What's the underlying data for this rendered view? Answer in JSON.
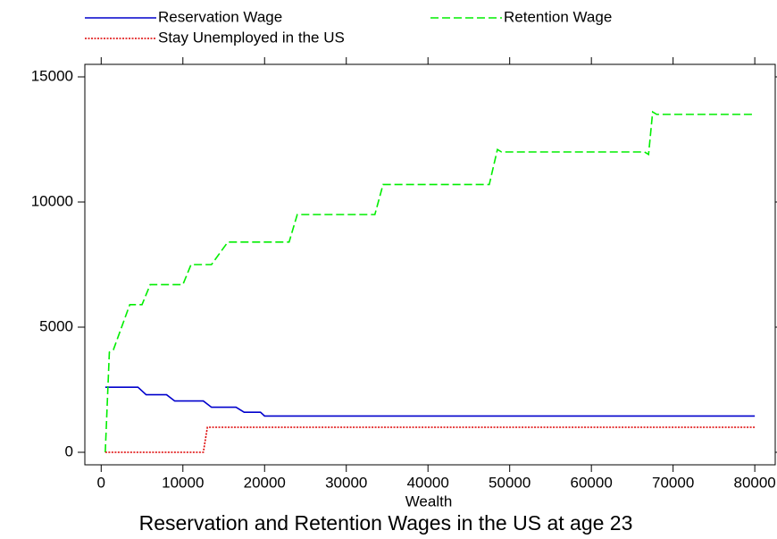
{
  "chart_data": {
    "type": "line",
    "title": "Reservation and Retention Wages in the US at age 23",
    "x_label": "Wealth",
    "xlim": [
      -2000,
      82500
    ],
    "ylim": [
      -500,
      15500
    ],
    "xticks": [
      0,
      10000,
      20000,
      30000,
      40000,
      50000,
      60000,
      70000,
      80000
    ],
    "yticks": [
      0,
      5000,
      10000,
      15000
    ],
    "grid": false,
    "legend": "top",
    "series": [
      {
        "name": "Reservation Wage",
        "color": "#0000cc",
        "dash": "solid",
        "x": [
          500,
          4500,
          5500,
          8000,
          9000,
          12500,
          13500,
          16500,
          17500,
          19500,
          20000,
          80000
        ],
        "values": [
          2600,
          2600,
          2300,
          2300,
          2050,
          2050,
          1800,
          1800,
          1600,
          1600,
          1450,
          1450
        ]
      },
      {
        "name": "Retention Wage",
        "color": "#00ee00",
        "dash": "dashed",
        "x": [
          500,
          1000,
          1500,
          3500,
          5000,
          6000,
          10000,
          11000,
          13500,
          15500,
          23000,
          24000,
          33500,
          34500,
          47500,
          48500,
          49000,
          66500,
          67000,
          67500,
          68000,
          80000
        ],
        "values": [
          0,
          4000,
          4100,
          5900,
          5900,
          6700,
          6700,
          7500,
          7500,
          8400,
          8400,
          9500,
          9500,
          10700,
          10700,
          12100,
          12000,
          12000,
          11900,
          13600,
          13500,
          13500
        ]
      },
      {
        "name": "Stay Unemployed in the US",
        "color": "#dd0000",
        "dash": "dotted",
        "x": [
          500,
          12500,
          13000,
          80000
        ],
        "values": [
          0,
          0,
          1000,
          1000
        ]
      }
    ]
  }
}
